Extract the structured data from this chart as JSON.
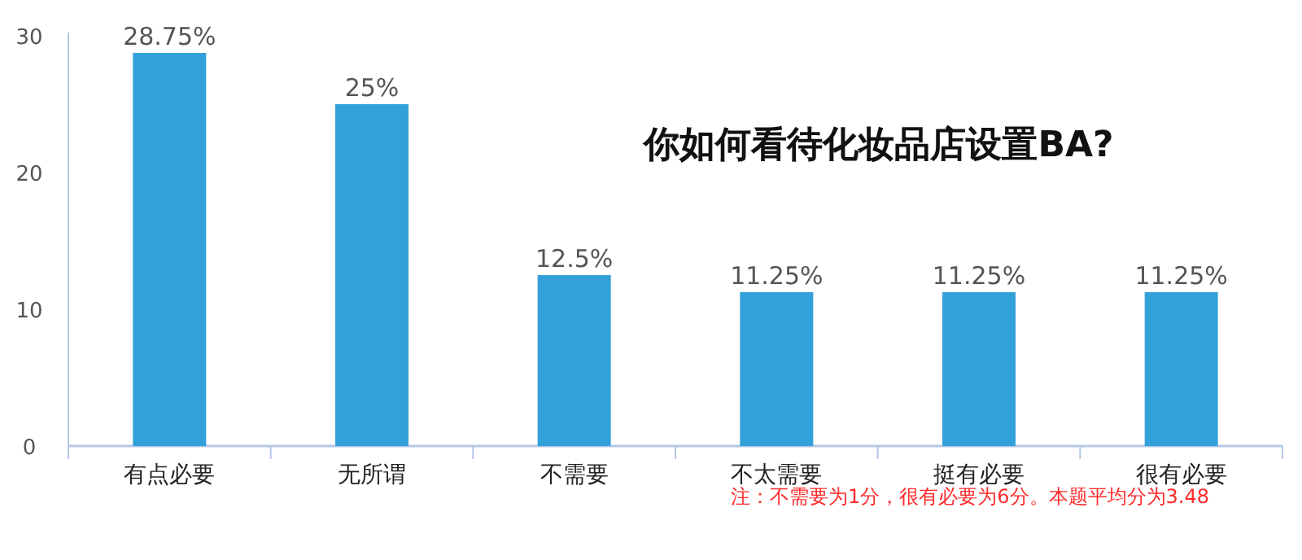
{
  "chart_data": {
    "type": "bar",
    "title": "你如何看待化妆品店设置BA?",
    "categories": [
      "有点必要",
      "无所谓",
      "不需要",
      "不太需要",
      "挺有必要",
      "很有必要"
    ],
    "values": [
      28.75,
      25,
      12.5,
      11.25,
      11.25,
      11.25
    ],
    "value_labels": [
      "28.75%",
      "25%",
      "12.5%",
      "11.25%",
      "11.25%",
      "11.25%"
    ],
    "color": "#33a1d9",
    "ylim": [
      0,
      30
    ],
    "yticks": [
      0,
      10,
      20,
      30
    ],
    "grid": false,
    "annotations": [
      "注：不需要为1分，很有必要为6分。本题平均分为3.48"
    ]
  }
}
